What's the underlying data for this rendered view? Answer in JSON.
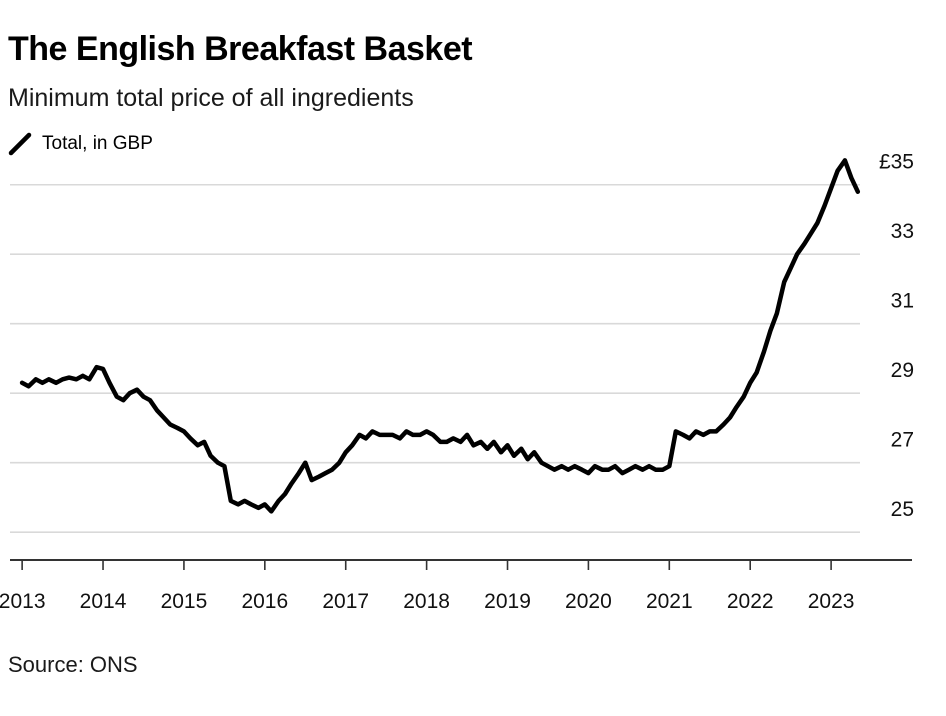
{
  "header": {
    "title": "The English Breakfast Basket",
    "subtitle": "Minimum total price of all ingredients"
  },
  "legend": {
    "label": "Total, in GBP",
    "icon": "line-swatch-icon"
  },
  "footer": {
    "source": "Source: ONS"
  },
  "colors": {
    "line": "#000000",
    "grid": "#d9d9d9",
    "axis": "#333333",
    "text": "#111111"
  },
  "chart_data": {
    "type": "line",
    "title": "The English Breakfast Basket",
    "subtitle": "Minimum total price of all ingredients",
    "xlabel": "",
    "ylabel": "",
    "ylim": [
      24.2,
      36
    ],
    "xlim": [
      2012.85,
      2024.0
    ],
    "y_ticks": [
      25,
      27,
      29,
      31,
      33,
      35
    ],
    "y_tick_labels": [
      "25",
      "27",
      "29",
      "31",
      "33",
      "£35"
    ],
    "x_ticks": [
      2013,
      2014,
      2015,
      2016,
      2017,
      2018,
      2019,
      2020,
      2021,
      2022,
      2023
    ],
    "x_tick_labels": [
      "2013",
      "2014",
      "2015",
      "2016",
      "2017",
      "2018",
      "2019",
      "2020",
      "2021",
      "2022",
      "2023"
    ],
    "grid": true,
    "legend_position": "top-left",
    "series": [
      {
        "name": "Total, in GBP",
        "x": [
          2013.0,
          2013.08,
          2013.17,
          2013.25,
          2013.33,
          2013.42,
          2013.5,
          2013.58,
          2013.67,
          2013.75,
          2013.83,
          2013.92,
          2014.0,
          2014.08,
          2014.17,
          2014.25,
          2014.33,
          2014.42,
          2014.5,
          2014.58,
          2014.67,
          2014.75,
          2014.83,
          2014.92,
          2015.0,
          2015.08,
          2015.17,
          2015.25,
          2015.33,
          2015.42,
          2015.5,
          2015.58,
          2015.67,
          2015.75,
          2015.83,
          2015.92,
          2016.0,
          2016.08,
          2016.17,
          2016.25,
          2016.33,
          2016.42,
          2016.5,
          2016.58,
          2016.67,
          2016.75,
          2016.83,
          2016.92,
          2017.0,
          2017.08,
          2017.17,
          2017.25,
          2017.33,
          2017.42,
          2017.5,
          2017.58,
          2017.67,
          2017.75,
          2017.83,
          2017.92,
          2018.0,
          2018.08,
          2018.17,
          2018.25,
          2018.33,
          2018.42,
          2018.5,
          2018.58,
          2018.67,
          2018.75,
          2018.83,
          2018.92,
          2019.0,
          2019.08,
          2019.17,
          2019.25,
          2019.33,
          2019.42,
          2019.5,
          2019.58,
          2019.67,
          2019.75,
          2019.83,
          2019.92,
          2020.0,
          2020.08,
          2020.17,
          2020.25,
          2020.33,
          2020.42,
          2020.5,
          2020.58,
          2020.67,
          2020.75,
          2020.83,
          2020.92,
          2021.0,
          2021.08,
          2021.17,
          2021.25,
          2021.33,
          2021.42,
          2021.5,
          2021.58,
          2021.67,
          2021.75,
          2021.83,
          2021.92,
          2022.0,
          2022.08,
          2022.17,
          2022.25,
          2022.33,
          2022.42,
          2022.5,
          2022.58,
          2022.67,
          2022.75,
          2022.83,
          2022.92,
          2023.0,
          2023.08,
          2023.17,
          2023.25,
          2023.33
        ],
        "values": [
          29.3,
          29.2,
          29.4,
          29.3,
          29.4,
          29.3,
          29.4,
          29.45,
          29.4,
          29.5,
          29.4,
          29.75,
          29.7,
          29.3,
          28.9,
          28.8,
          29.0,
          29.1,
          28.9,
          28.8,
          28.5,
          28.3,
          28.1,
          28.0,
          27.9,
          27.7,
          27.5,
          27.6,
          27.2,
          27.0,
          26.9,
          25.9,
          25.8,
          25.9,
          25.8,
          25.7,
          25.8,
          25.6,
          25.9,
          26.1,
          26.4,
          26.7,
          27.0,
          26.5,
          26.6,
          26.7,
          26.8,
          27.0,
          27.3,
          27.5,
          27.8,
          27.7,
          27.9,
          27.8,
          27.8,
          27.8,
          27.7,
          27.9,
          27.8,
          27.8,
          27.9,
          27.8,
          27.6,
          27.6,
          27.7,
          27.6,
          27.8,
          27.5,
          27.6,
          27.4,
          27.6,
          27.3,
          27.5,
          27.2,
          27.4,
          27.1,
          27.3,
          27.0,
          26.9,
          26.8,
          26.9,
          26.8,
          26.9,
          26.8,
          26.7,
          26.9,
          26.8,
          26.8,
          26.9,
          26.7,
          26.8,
          26.9,
          26.8,
          26.9,
          26.8,
          26.8,
          26.9,
          27.9,
          27.8,
          27.7,
          27.9,
          27.8,
          27.9,
          27.9,
          28.1,
          28.3,
          28.6,
          28.9,
          29.3,
          29.6,
          30.2,
          30.8,
          31.3,
          32.2,
          32.6,
          33.0,
          33.3,
          33.6,
          33.9,
          34.4,
          34.9,
          35.4,
          35.7,
          35.2,
          34.8
        ],
        "color": "#000000"
      }
    ]
  }
}
